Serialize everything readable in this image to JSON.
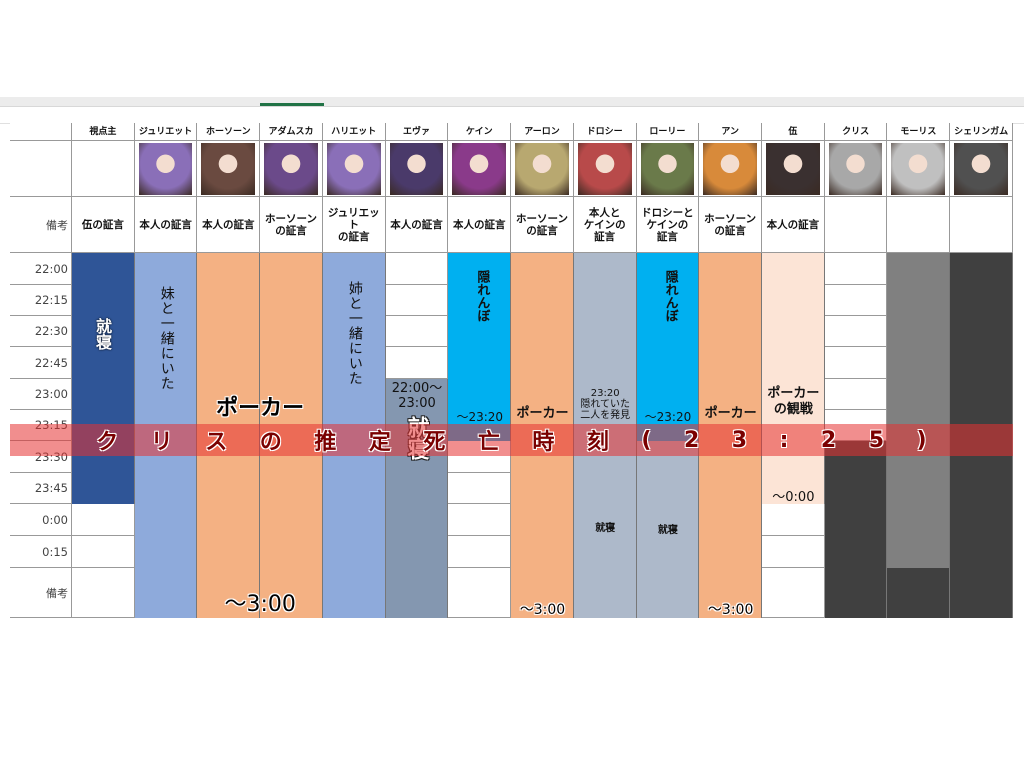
{
  "corner_label_remarks": "備考",
  "bottom_label": "備考",
  "time_slots": [
    "22:00",
    "22:15",
    "22:30",
    "22:45",
    "23:00",
    "23:15",
    "23:30",
    "23:45",
    "0:00",
    "0:15"
  ],
  "columns": [
    {
      "name": "視点主",
      "remark": "伍の証言",
      "portrait": null
    },
    {
      "name": "ジュリエット",
      "remark": "本人の証言",
      "portrait": "#8a6fb8"
    },
    {
      "name": "ホーソーン",
      "remark": "本人の証言",
      "portrait": "#6a4a40"
    },
    {
      "name": "アダムスカ",
      "remark": "ホーソーン\nの証言",
      "portrait": "#6b4a8a"
    },
    {
      "name": "ハリエット",
      "remark": "ジュリエット\nの証言",
      "portrait": "#8a6fb8"
    },
    {
      "name": "エヴァ",
      "remark": "本人の証言",
      "portrait": "#4a3a6a"
    },
    {
      "name": "ケイン",
      "remark": "本人の証言",
      "portrait": "#8a3a8a"
    },
    {
      "name": "アーロン",
      "remark": "ホーソーン\nの証言",
      "portrait": "#b8a870"
    },
    {
      "name": "ドロシー",
      "remark": "本人と\nケインの\n証言",
      "portrait": "#b84a4a"
    },
    {
      "name": "ローリー",
      "remark": "ドロシーと\nケインの\n証言",
      "portrait": "#6a7a4a"
    },
    {
      "name": "アン",
      "remark": "ホーソーン\nの証言",
      "portrait": "#d88a3a"
    },
    {
      "name": "伍",
      "remark": "本人の証言",
      "portrait": "#3a3030"
    },
    {
      "name": "クリス",
      "remark": "",
      "portrait": "#a8a8a8"
    },
    {
      "name": "モーリス",
      "remark": "",
      "portrait": "#c0c0c0"
    },
    {
      "name": "シェリンガム",
      "remark": "",
      "portrait": "#505050"
    }
  ],
  "colors": {
    "dark_blue": "#2f5597",
    "light_blue": "#8eaadb",
    "orange": "#f4b183",
    "slate": "#8497b0",
    "cyan": "#00b0f0",
    "gray_blue": "#adb9ca",
    "peach": "#fce4d6",
    "gray": "#808080",
    "dark": "#404040",
    "banner": "#e63232"
  },
  "texts": {
    "sleep_pov": "就寝",
    "juliet": "妹と一緒にいた",
    "poker_big": "ポーカー",
    "until_3_big": "〜3:00",
    "harriet": "姉と一緒にいた",
    "eva_time": "22:00〜\n23:00",
    "eva_sleep": "就寝",
    "cain_hide": "隠れんぼ",
    "cain_until": "〜23:20",
    "aaron_poker": "ポーカー",
    "aaron_until": "〜3:00",
    "dorothy_note": "23:20\n隠れていた\n二人を発見",
    "dorothy_sleep": "就寝",
    "laurie_hide": "隠れんぼ",
    "laurie_until": "〜23:20",
    "laurie_sleep": "就寝",
    "ann_poker": "ポーカー",
    "ann_until": "〜3:00",
    "wu_watch": "ポーカー\nの観戦",
    "wu_until": "〜0:00"
  },
  "banner_text": [
    "ク",
    "リ",
    "ス",
    "の",
    "推",
    "定",
    "死",
    "亡",
    "時",
    "刻",
    "(",
    "2",
    "3",
    ":",
    "2",
    "5",
    ")"
  ]
}
